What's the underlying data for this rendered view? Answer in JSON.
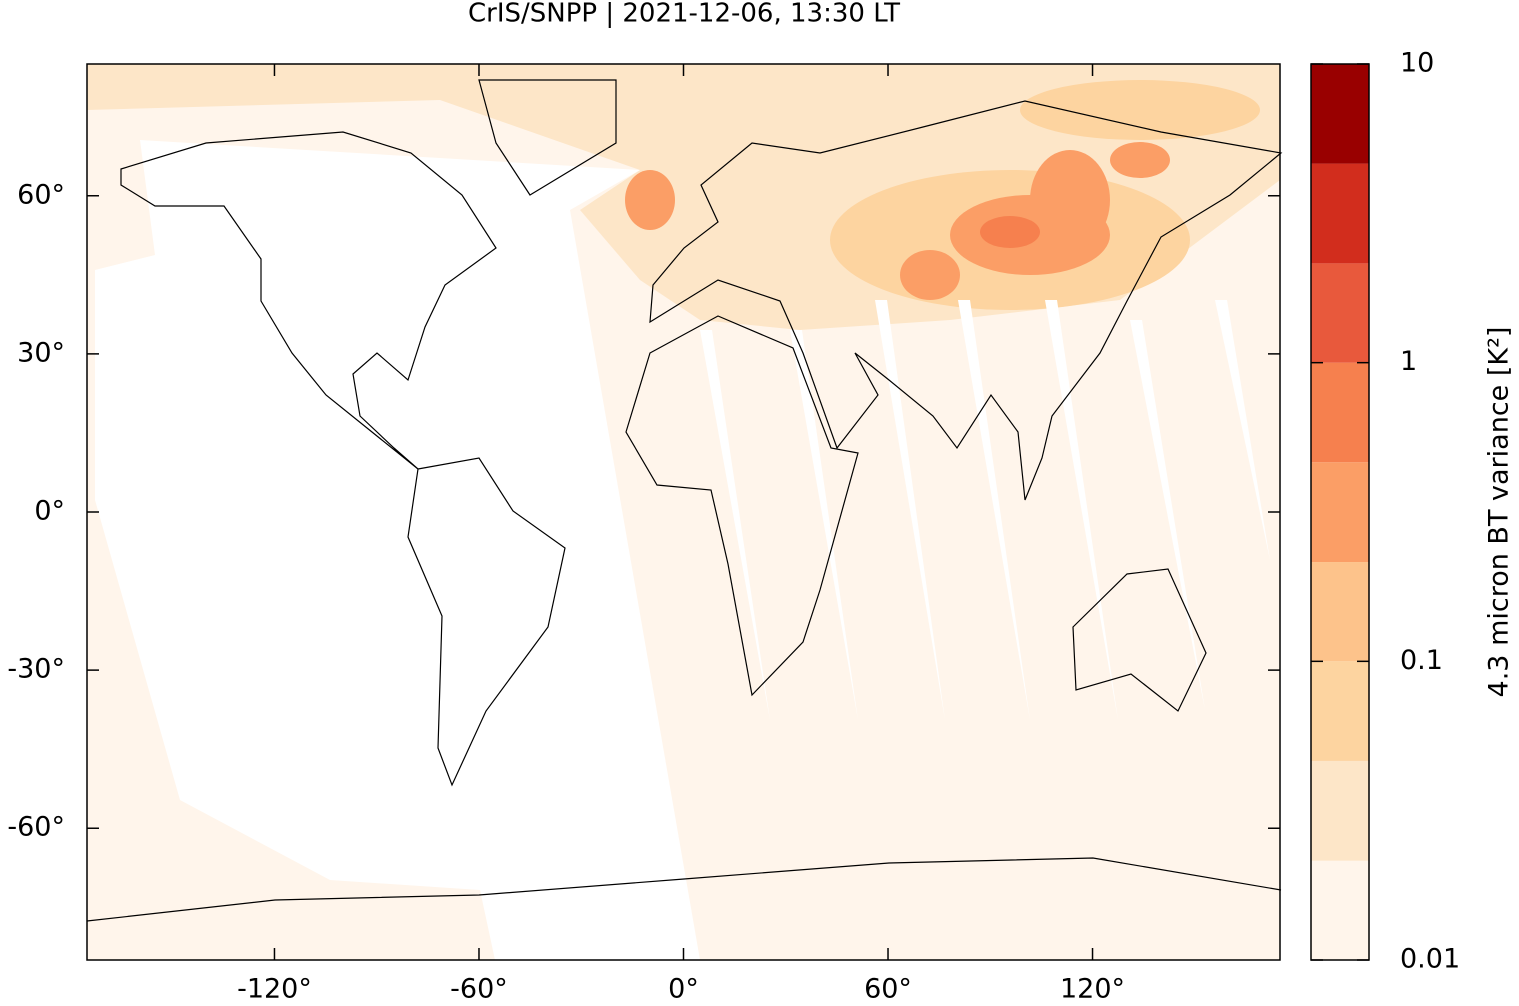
{
  "chart_data": {
    "type": "map",
    "title": "CrIS/SNPP | 2021-12-06, 13:30 LT",
    "xlim": [
      -175,
      175
    ],
    "ylim": [
      -85,
      85
    ],
    "xticks": [
      {
        "value": -120,
        "label": "-120°"
      },
      {
        "value": -60,
        "label": "-60°"
      },
      {
        "value": 0,
        "label": "0°"
      },
      {
        "value": 60,
        "label": "60°"
      },
      {
        "value": 120,
        "label": "120°"
      }
    ],
    "yticks": [
      {
        "value": -60,
        "label": "-60°"
      },
      {
        "value": -30,
        "label": "-30°"
      },
      {
        "value": 0,
        "label": "0°"
      },
      {
        "value": 30,
        "label": "30°"
      },
      {
        "value": 60,
        "label": "60°"
      }
    ],
    "colorbar": {
      "label": "4.3 micron BT variance [K²]",
      "scale": "log",
      "lim": [
        0.01,
        10
      ],
      "ticks": [
        0.01,
        0.1,
        1,
        10
      ],
      "bins": [
        0.01,
        0.0215,
        0.0464,
        0.1,
        0.215,
        0.464,
        1,
        2.15,
        4.64,
        10
      ],
      "colors": [
        "#fff5eb",
        "#fde6c8",
        "#fdd4a0",
        "#fdc38b",
        "#fb9e66",
        "#f6804e",
        "#e8593c",
        "#d22d1d",
        "#990000"
      ]
    }
  }
}
